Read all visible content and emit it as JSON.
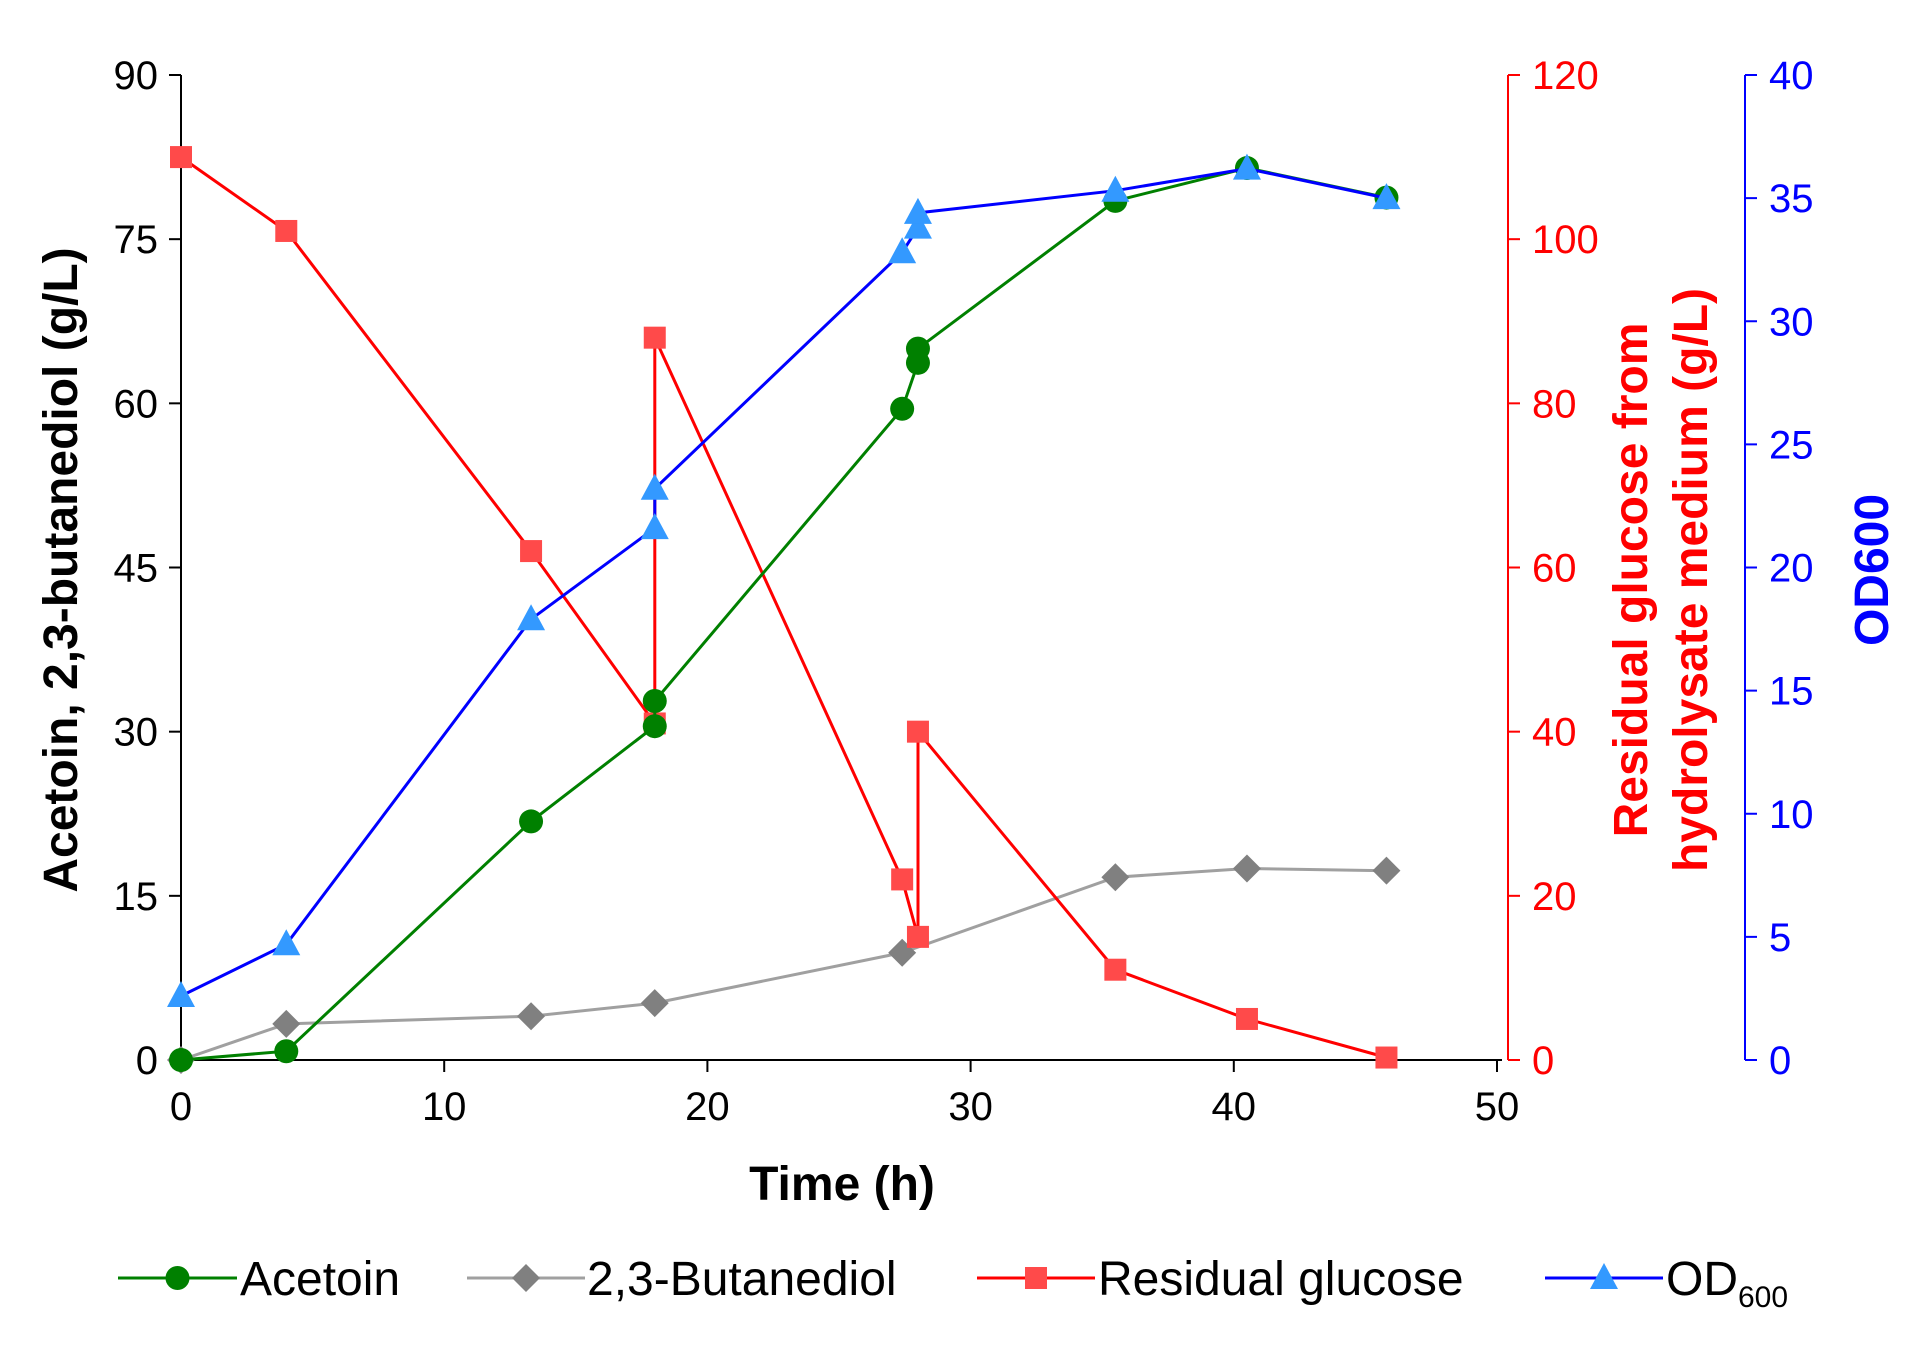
{
  "chart_data": {
    "type": "line",
    "xlabel": "Time (h)",
    "xlim": [
      0,
      50
    ],
    "xticks": [
      0,
      10,
      20,
      30,
      40,
      50
    ],
    "axes": {
      "left": {
        "label": "Acetoin, 2,3-butanediol (g/L)",
        "ylim": [
          0,
          90
        ],
        "ticks": [
          0,
          15,
          30,
          45,
          60,
          75,
          90
        ],
        "color": "#000000"
      },
      "right1": {
        "label_line1": "Residual glucose from",
        "label_line2": "hydrolysate medium (g/L)",
        "ylim": [
          0,
          120
        ],
        "ticks": [
          0,
          20,
          40,
          60,
          80,
          100,
          120
        ],
        "color": "#ff0000"
      },
      "right2": {
        "label": "OD600",
        "ylim": [
          0,
          40
        ],
        "ticks": [
          0,
          5,
          10,
          15,
          20,
          25,
          30,
          35,
          40
        ],
        "color": "#0000ff"
      }
    },
    "series": [
      {
        "name": "Acetoin",
        "axis": "left",
        "marker": "circle",
        "line_color": "#008000",
        "marker_color": "#008000",
        "x": [
          0,
          4,
          13.3,
          18,
          18,
          27.4,
          28,
          28,
          35.5,
          40.5,
          45.8
        ],
        "y": [
          0,
          0.8,
          21.8,
          30.5,
          32.8,
          59.5,
          63.7,
          65.0,
          78.5,
          81.5,
          78.8
        ]
      },
      {
        "name": "2,3-Butanediol",
        "axis": "left",
        "marker": "diamond",
        "line_color": "#a0a0a0",
        "marker_color": "#808080",
        "x": [
          0,
          4,
          13.3,
          18,
          27.4,
          35.5,
          40.5,
          45.8
        ],
        "y": [
          0,
          3.3,
          4.0,
          5.2,
          9.8,
          16.7,
          17.5,
          17.3
        ]
      },
      {
        "name": "Residual glucose",
        "axis": "right1",
        "marker": "square",
        "line_color": "#ff0000",
        "marker_color": "#ff4a4a",
        "x": [
          0,
          4,
          13.3,
          18,
          18,
          27.4,
          28,
          28,
          35.5,
          40.5,
          45.8
        ],
        "y": [
          110,
          101,
          62,
          41,
          88,
          22,
          15,
          40,
          11,
          5,
          0.3
        ]
      },
      {
        "name": "OD",
        "name_sub": "600",
        "axis": "right2",
        "marker": "triangle",
        "line_color": "#0000ff",
        "marker_color": "#3399ff",
        "x": [
          0,
          4,
          13.3,
          18,
          18,
          27.4,
          28,
          28,
          35.5,
          40.5,
          45.8
        ],
        "y": [
          2.6,
          4.7,
          17.9,
          21.6,
          23.2,
          32.8,
          33.8,
          34.4,
          35.3,
          36.2,
          35.0
        ]
      }
    ]
  }
}
